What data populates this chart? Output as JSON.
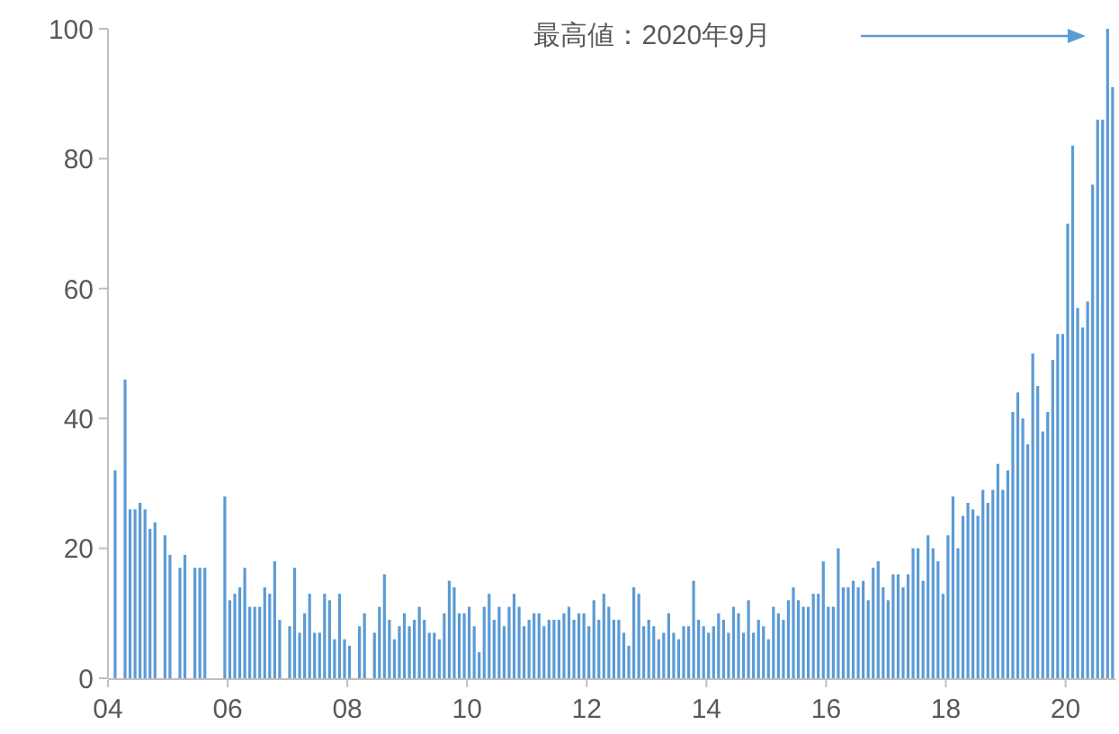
{
  "chart_data": {
    "type": "bar",
    "x": [
      "2004-02",
      "2004-03",
      "2004-04",
      "2004-05",
      "2004-06",
      "2004-07",
      "2004-08",
      "2004-09",
      "2004-10",
      "2004-11",
      "2004-12",
      "2005-01",
      "2005-02",
      "2005-03",
      "2005-04",
      "2005-05",
      "2005-06",
      "2005-07",
      "2005-08",
      "2005-09",
      "2005-10",
      "2005-11",
      "2005-12",
      "2006-01",
      "2006-02",
      "2006-03",
      "2006-04",
      "2006-05",
      "2006-06",
      "2006-07",
      "2006-08",
      "2006-09",
      "2006-10",
      "2006-11",
      "2006-12",
      "2007-01",
      "2007-02",
      "2007-03",
      "2007-04",
      "2007-05",
      "2007-06",
      "2007-07",
      "2007-08",
      "2007-09",
      "2007-10",
      "2007-11",
      "2007-12",
      "2008-01",
      "2008-02",
      "2008-03",
      "2008-04",
      "2008-05",
      "2008-06",
      "2008-07",
      "2008-08",
      "2008-09",
      "2008-10",
      "2008-11",
      "2008-12",
      "2009-01",
      "2009-02",
      "2009-03",
      "2009-04",
      "2009-05",
      "2009-06",
      "2009-07",
      "2009-08",
      "2009-09",
      "2009-10",
      "2009-11",
      "2009-12",
      "2010-01",
      "2010-02",
      "2010-03",
      "2010-04",
      "2010-05",
      "2010-06",
      "2010-07",
      "2010-08",
      "2010-09",
      "2010-10",
      "2010-11",
      "2010-12",
      "2011-01",
      "2011-02",
      "2011-03",
      "2011-04",
      "2011-05",
      "2011-06",
      "2011-07",
      "2011-08",
      "2011-09",
      "2011-10",
      "2011-11",
      "2011-12",
      "2012-01",
      "2012-02",
      "2012-03",
      "2012-04",
      "2012-05",
      "2012-06",
      "2012-07",
      "2012-08",
      "2012-09",
      "2012-10",
      "2012-11",
      "2012-12",
      "2013-01",
      "2013-02",
      "2013-03",
      "2013-04",
      "2013-05",
      "2013-06",
      "2013-07",
      "2013-08",
      "2013-09",
      "2013-10",
      "2013-11",
      "2013-12",
      "2014-01",
      "2014-02",
      "2014-03",
      "2014-04",
      "2014-05",
      "2014-06",
      "2014-07",
      "2014-08",
      "2014-09",
      "2014-10",
      "2014-11",
      "2014-12",
      "2015-01",
      "2015-02",
      "2015-03",
      "2015-04",
      "2015-05",
      "2015-06",
      "2015-07",
      "2015-08",
      "2015-09",
      "2015-10",
      "2015-11",
      "2015-12",
      "2016-01",
      "2016-02",
      "2016-03",
      "2016-04",
      "2016-05",
      "2016-06",
      "2016-07",
      "2016-08",
      "2016-09",
      "2016-10",
      "2016-11",
      "2016-12",
      "2017-01",
      "2017-02",
      "2017-03",
      "2017-04",
      "2017-05",
      "2017-06",
      "2017-07",
      "2017-08",
      "2017-09",
      "2017-10",
      "2017-11",
      "2017-12",
      "2018-01",
      "2018-02",
      "2018-03",
      "2018-04",
      "2018-05",
      "2018-06",
      "2018-07",
      "2018-08",
      "2018-09",
      "2018-10",
      "2018-11",
      "2018-12",
      "2019-01",
      "2019-02",
      "2019-03",
      "2019-04",
      "2019-05",
      "2019-06",
      "2019-07",
      "2019-08",
      "2019-09",
      "2019-10",
      "2019-11",
      "2019-12",
      "2020-01",
      "2020-02",
      "2020-03",
      "2020-04",
      "2020-05",
      "2020-06",
      "2020-07",
      "2020-08",
      "2020-09",
      "2020-10"
    ],
    "values": [
      32,
      0,
      46,
      26,
      26,
      27,
      26,
      23,
      24,
      0,
      22,
      19,
      0,
      17,
      19,
      0,
      17,
      17,
      17,
      0,
      0,
      0,
      28,
      12,
      13,
      14,
      17,
      11,
      11,
      11,
      14,
      13,
      18,
      9,
      0,
      8,
      17,
      7,
      10,
      13,
      7,
      7,
      13,
      12,
      6,
      13,
      6,
      5,
      0,
      8,
      10,
      0,
      7,
      11,
      16,
      9,
      6,
      8,
      10,
      8,
      9,
      11,
      9,
      7,
      7,
      6,
      10,
      15,
      14,
      10,
      10,
      11,
      8,
      4,
      11,
      13,
      9,
      11,
      8,
      11,
      13,
      11,
      8,
      9,
      10,
      10,
      8,
      9,
      9,
      9,
      10,
      11,
      9,
      10,
      10,
      8,
      12,
      9,
      13,
      11,
      9,
      9,
      7,
      5,
      14,
      13,
      8,
      9,
      8,
      6,
      7,
      10,
      7,
      6,
      8,
      8,
      15,
      9,
      8,
      7,
      8,
      10,
      9,
      7,
      11,
      10,
      7,
      12,
      7,
      9,
      8,
      6,
      11,
      10,
      9,
      12,
      14,
      12,
      11,
      11,
      13,
      13,
      18,
      11,
      11,
      20,
      14,
      14,
      15,
      14,
      15,
      12,
      17,
      18,
      14,
      12,
      16,
      16,
      14,
      16,
      20,
      20,
      15,
      22,
      20,
      18,
      13,
      22,
      28,
      20,
      25,
      27,
      26,
      25,
      29,
      27,
      29,
      33,
      29,
      32,
      41,
      44,
      40,
      36,
      50,
      45,
      38,
      41,
      49,
      53,
      53,
      70,
      82,
      57,
      54,
      58,
      76,
      86,
      86,
      100,
      91
    ],
    "color": "#5b9bd5",
    "xlim": [
      "2004-01",
      "2020-11"
    ],
    "xticks": [
      {
        "value": "2004-01",
        "label": "04"
      },
      {
        "value": "2006-01",
        "label": "06"
      },
      {
        "value": "2008-01",
        "label": "08"
      },
      {
        "value": "2010-01",
        "label": "10"
      },
      {
        "value": "2012-01",
        "label": "12"
      },
      {
        "value": "2014-01",
        "label": "14"
      },
      {
        "value": "2016-01",
        "label": "16"
      },
      {
        "value": "2018-01",
        "label": "18"
      },
      {
        "value": "2020-01",
        "label": "20"
      }
    ],
    "ylim": [
      0,
      100
    ],
    "yticks": [
      0,
      20,
      40,
      60,
      80,
      100
    ],
    "grid": false,
    "annotations": [
      "最高値：2020年9月"
    ]
  }
}
